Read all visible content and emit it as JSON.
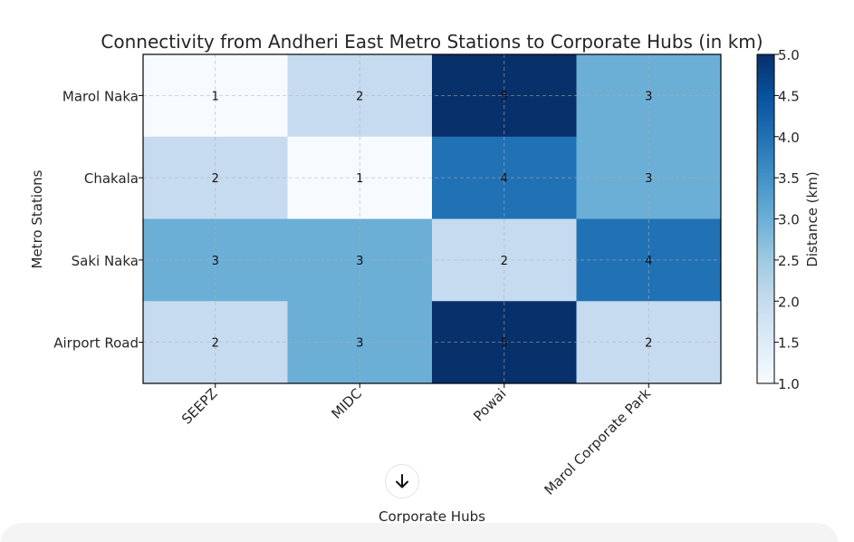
{
  "chart_data": {
    "type": "heatmap",
    "title": "Connectivity from Andheri East Metro Stations to Corporate Hubs (in km)",
    "xlabel": "Corporate Hubs",
    "ylabel": "Metro Stations",
    "rows": [
      "Marol Naka",
      "Chakala",
      "Saki Naka",
      "Airport Road"
    ],
    "columns": [
      "SEEPZ",
      "MIDC",
      "Powai",
      "Marol Corporate Park"
    ],
    "values": [
      [
        1,
        2,
        5,
        3
      ],
      [
        2,
        1,
        4,
        3
      ],
      [
        3,
        3,
        2,
        4
      ],
      [
        2,
        3,
        5,
        2
      ]
    ],
    "colorbar": {
      "label": "Distance (km)",
      "range": [
        1.0,
        5.0
      ],
      "ticks": [
        "1.0",
        "1.5",
        "2.0",
        "2.5",
        "3.0",
        "3.5",
        "4.0",
        "4.5",
        "5.0"
      ],
      "colormap": "Blues"
    },
    "grid": true
  },
  "ui": {
    "scroll_down_icon": "arrow-down-icon"
  }
}
